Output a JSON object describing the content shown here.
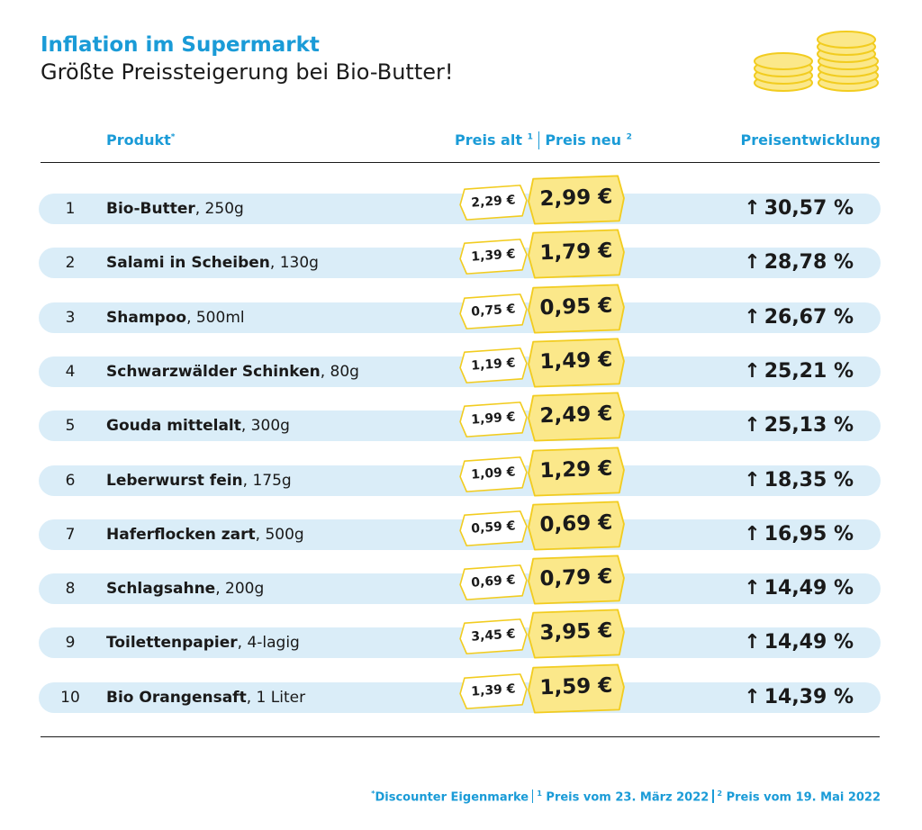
{
  "header": {
    "title": "Inflation im Supermarkt",
    "subtitle": "Größte Preissteigerung bei Bio-Butter!"
  },
  "columns": {
    "produkt": "Produkt",
    "produkt_mark": "*",
    "preis_alt": "Preis alt",
    "preis_alt_mark": "1",
    "preis_neu": "Preis neu",
    "preis_neu_mark": "2",
    "entwicklung": "Preisentwicklung"
  },
  "chart_data": {
    "type": "table",
    "columns": [
      "Produkt",
      "Preis alt",
      "Preis neu",
      "Preisentwicklung"
    ],
    "rows": [
      {
        "rank": "1",
        "name": "Bio-Butter",
        "detail": ", 250g",
        "old": "2,29 €",
        "new": "2,99 €",
        "change": "30,57 %"
      },
      {
        "rank": "2",
        "name": "Salami in Scheiben",
        "detail": ", 130g",
        "old": "1,39 €",
        "new": "1,79 €",
        "change": "28,78 %"
      },
      {
        "rank": "3",
        "name": "Shampoo",
        "detail": ", 500ml",
        "old": "0,75 €",
        "new": "0,95 €",
        "change": "26,67 %"
      },
      {
        "rank": "4",
        "name": "Schwarzwälder Schinken",
        "detail": ", 80g",
        "old": "1,19 €",
        "new": "1,49 €",
        "change": "25,21 %"
      },
      {
        "rank": "5",
        "name": "Gouda mittelalt",
        "detail": ", 300g",
        "old": "1,99 €",
        "new": "2,49 €",
        "change": "25,13 %"
      },
      {
        "rank": "6",
        "name": "Leberwurst fein",
        "detail": ", 175g",
        "old": "1,09 €",
        "new": "1,29 €",
        "change": "18,35 %"
      },
      {
        "rank": "7",
        "name": "Haferflocken zart",
        "detail": ", 500g",
        "old": "0,59 €",
        "new": "0,69 €",
        "change": "16,95 %"
      },
      {
        "rank": "8",
        "name": "Schlagsahne",
        "detail": ", 200g",
        "old": "0,69 €",
        "new": "0,79 €",
        "change": "14,49 %"
      },
      {
        "rank": "9",
        "name": "Toilettenpapier",
        "detail": ", 4-lagig",
        "old": "3,45 €",
        "new": "3,95 €",
        "change": "14,49 %"
      },
      {
        "rank": "10",
        "name": "Bio Orangensaft",
        "detail": ", 1 Liter",
        "old": "1,39 €",
        "new": "1,59 €",
        "change": "14,39 %"
      }
    ]
  },
  "footnote": {
    "star": "*",
    "part1": "Discounter Eigenmarke",
    "mark1": "1",
    "part2": " Preis vom 23. März 2022",
    "mark2": "2",
    "part3": " Preis vom 19. Mai 2022"
  },
  "icons": {
    "up_arrow": "↑",
    "coins": "coins-icon"
  },
  "colors": {
    "accent": "#1a9bd7",
    "row_bg": "#daedf8",
    "tag_new_fill": "#fbe88a",
    "tag_border": "#f2cc1f",
    "coin_fill": "#fbe88a"
  }
}
